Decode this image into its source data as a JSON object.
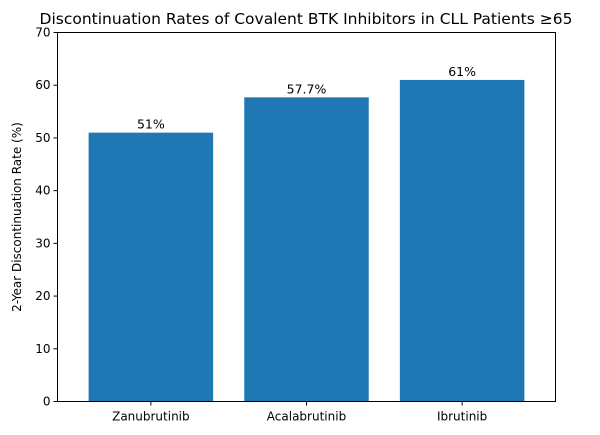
{
  "chart_data": {
    "type": "bar",
    "title": "Discontinuation Rates of Covalent BTK Inhibitors in CLL Patients ≥65",
    "xlabel": "",
    "ylabel": "2-Year Discontinuation Rate (%)",
    "categories": [
      "Zanubrutinib",
      "Acalabrutinib",
      "Ibrutinib"
    ],
    "values": [
      51,
      57.7,
      61
    ],
    "data_labels": [
      "51%",
      "57.7%",
      "61%"
    ],
    "ylim": [
      0,
      70
    ],
    "yticks": [
      0,
      10,
      20,
      30,
      40,
      50,
      60,
      70
    ],
    "bar_color": "#1f77b4",
    "grid": false,
    "legend": "none"
  }
}
